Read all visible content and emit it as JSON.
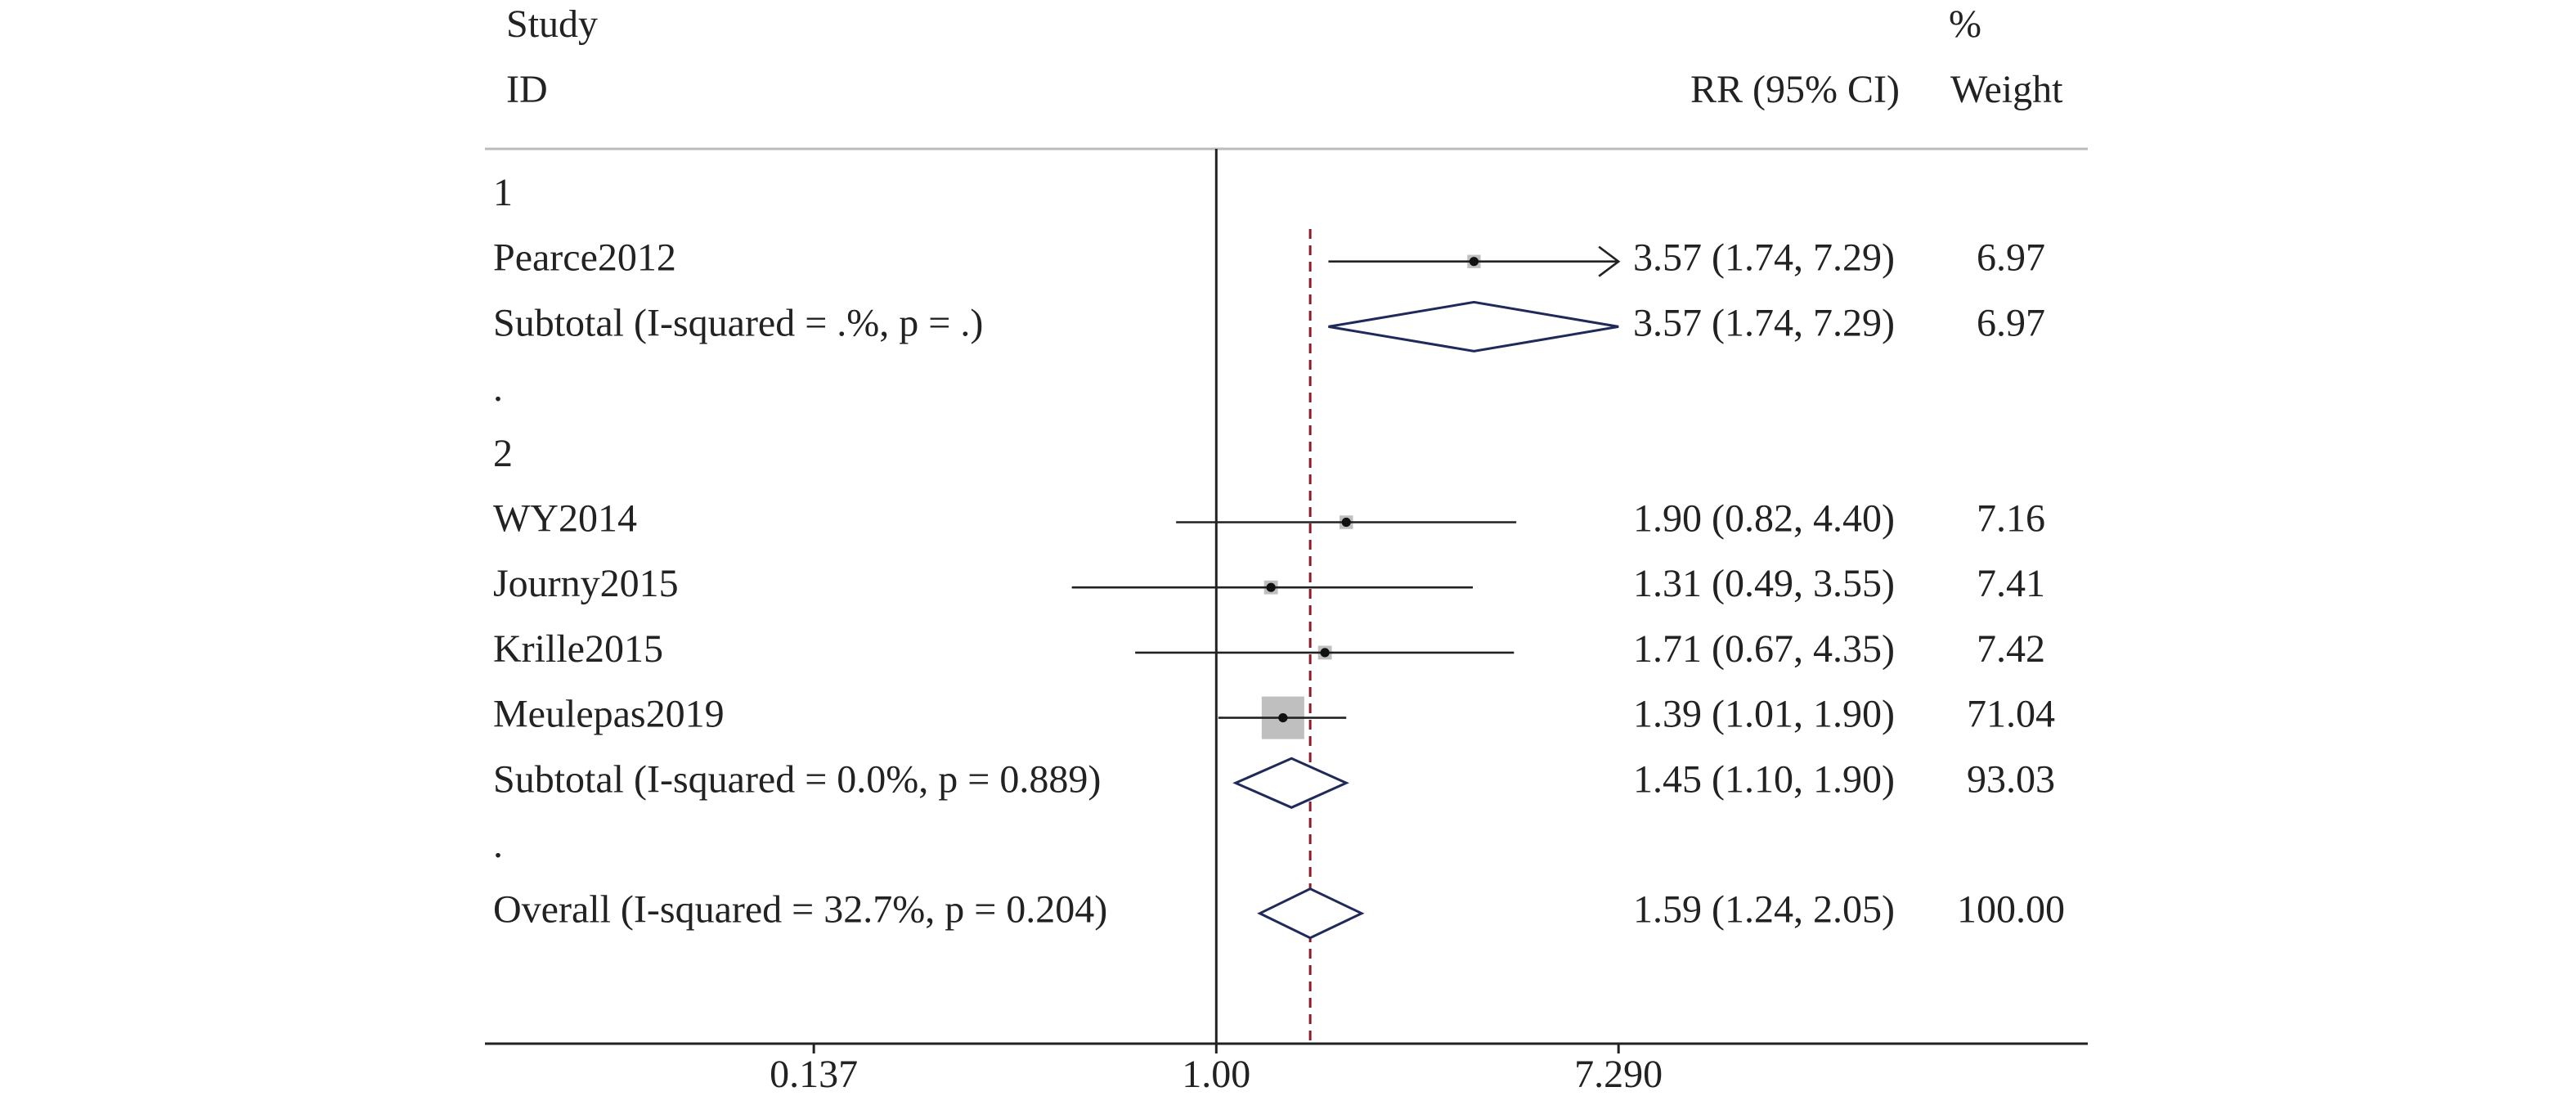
{
  "chart_data": {
    "type": "forest",
    "headers": {
      "study": "Study",
      "id": "ID",
      "ci": "RR (95% CI)",
      "pct": "%",
      "weight": "Weight"
    },
    "xscale": "log",
    "xlim": [
      0.027,
      74
    ],
    "xticks": [
      0.137,
      {
        "value": 1,
        "label": "1.00"
      },
      {
        "value": 7.29,
        "label": "7.290"
      }
    ],
    "groups": [
      {
        "label": "1",
        "studies": [
          {
            "label": "Pearce2012",
            "estimate": 3.57,
            "lo": 1.74,
            "hi": 7.29,
            "ci_label": "3.57 (1.74, 7.29)",
            "weight": 6.97
          }
        ],
        "subtotal": {
          "label": "Subtotal (I-squared = .%, p = .)",
          "estimate": 3.57,
          "lo": 1.74,
          "hi": 7.29,
          "ci_label": "3.57 (1.74, 7.29)",
          "weight": 6.97
        },
        "separator": "."
      },
      {
        "label": "2",
        "studies": [
          {
            "label": "WY2014",
            "estimate": 1.9,
            "lo": 0.82,
            "hi": 4.4,
            "ci_label": "1.90 (0.82, 4.40)",
            "weight": 7.16
          },
          {
            "label": "Journy2015",
            "estimate": 1.31,
            "lo": 0.49,
            "hi": 3.55,
            "ci_label": "1.31 (0.49, 3.55)",
            "weight": 7.41
          },
          {
            "label": "Krille2015",
            "estimate": 1.71,
            "lo": 0.67,
            "hi": 4.35,
            "ci_label": "1.71 (0.67, 4.35)",
            "weight": 7.42
          },
          {
            "label": "Meulepas2019",
            "estimate": 1.39,
            "lo": 1.01,
            "hi": 1.9,
            "ci_label": "1.39 (1.01, 1.90)",
            "weight": 71.04
          }
        ],
        "subtotal": {
          "label": "Subtotal (I-squared = 0.0%, p = 0.889)",
          "estimate": 1.45,
          "lo": 1.1,
          "hi": 1.9,
          "ci_label": "1.45 (1.10, 1.90)",
          "weight": 93.03
        },
        "separator": "."
      }
    ],
    "overall": {
      "label": "Overall (I-squared = 32.7%, p = 0.204)",
      "estimate": 1.59,
      "lo": 1.24,
      "hi": 2.05,
      "ci_label": "1.59 (1.24, 2.05)",
      "weight": 100,
      "weight_label": "100.00"
    },
    "square_color": "#bfbfbf",
    "diamond_color": "#1f2a5a",
    "overall_line_color": "#8b1a2b"
  }
}
